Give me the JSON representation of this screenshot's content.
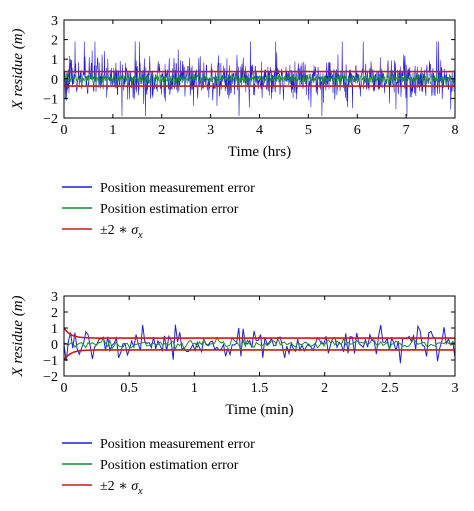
{
  "chart_data": [
    {
      "type": "line",
      "xlabel": "Time (hrs)",
      "ylabel": "X residue (m)",
      "xlim": [
        0,
        8
      ],
      "ylim": [
        -2,
        3
      ],
      "xticks": [
        "0",
        "1",
        "2",
        "3",
        "4",
        "5",
        "6",
        "7",
        "8"
      ],
      "yticks": [
        "−2",
        "−1",
        "0",
        "1",
        "2",
        "3"
      ],
      "grid": false,
      "legend_position": "below",
      "series": [
        {
          "name": "Position measurement error",
          "color": "#1f1fd6",
          "style": "noise",
          "sigma": 0.5,
          "peak": 1.9,
          "points": 1100
        },
        {
          "name": "Position estimation error",
          "color": "#1a8a2e",
          "style": "noise",
          "sigma": 0.12,
          "peak": 0.3,
          "points": 1100
        },
        {
          "name": "±2 ∗ σ_x",
          "color": "#d01818",
          "style": "bound",
          "bound": 0.37
        }
      ]
    },
    {
      "type": "line",
      "xlabel": "Time (min)",
      "ylabel": "X residue (m)",
      "xlim": [
        0,
        3
      ],
      "ylim": [
        -2,
        3
      ],
      "xticks": [
        "0",
        "0.5",
        "1",
        "1.5",
        "2",
        "2.5",
        "3"
      ],
      "yticks": [
        "−2",
        "−1",
        "0",
        "1",
        "2",
        "3"
      ],
      "grid": false,
      "legend_position": "below",
      "series": [
        {
          "name": "Position measurement error",
          "color": "#1f1fd6",
          "style": "noise",
          "sigma": 0.45,
          "peak": 1.2,
          "points": 180
        },
        {
          "name": "Position estimation error",
          "color": "#1a8a2e",
          "style": "noise",
          "sigma": 0.15,
          "peak": 0.4,
          "points": 180
        },
        {
          "name": "±2 ∗ σ_x",
          "color": "#d01818",
          "style": "bound",
          "bound": 0.37,
          "initial_bound": 1.0
        }
      ]
    }
  ],
  "legend": {
    "entry_1": "Position measurement error",
    "entry_2": "Position estimation error",
    "entry_3_prefix": "±2 ∗ ",
    "entry_3_sigma": "σ",
    "entry_3_sub": "x"
  }
}
